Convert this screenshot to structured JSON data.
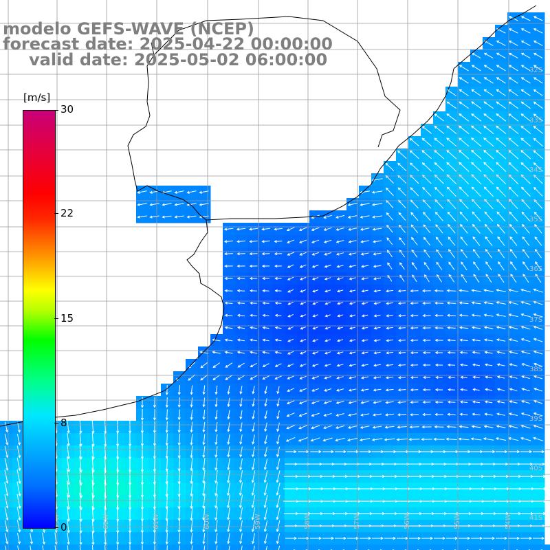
{
  "title": {
    "line1": "modelo GEFS-WAVE (NCEP)",
    "line2": "forecast date: 2025-04-22 00:00:00",
    "line3": "valid date: 2025-05-02 06:00:00"
  },
  "colorbar": {
    "unit": "[m/s]",
    "ticks": [
      "30",
      "22",
      "15",
      "8",
      "0"
    ],
    "tick_values": [
      30,
      22,
      15,
      8,
      0
    ],
    "min": 0,
    "max": 30
  },
  "map": {
    "lat_labels": [
      "32S",
      "33S",
      "34S",
      "35S",
      "36S",
      "37S",
      "38S",
      "39S",
      "40S",
      "41S"
    ],
    "lon_labels": [
      "63W",
      "62W",
      "61W",
      "60W",
      "59W",
      "58W",
      "57W",
      "56W",
      "55W",
      "54W"
    ],
    "colors": {
      "land": "#ffffff",
      "coast": "#000000",
      "grid": "#9a9a9a",
      "arrow": "#ffffff",
      "label": "#bfbfbf"
    }
  }
}
